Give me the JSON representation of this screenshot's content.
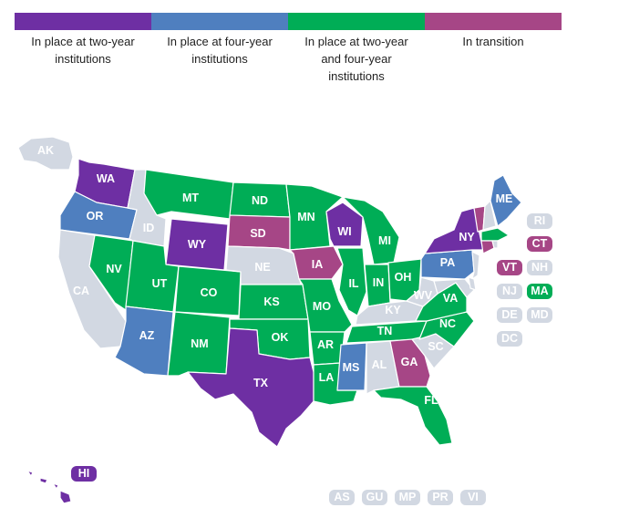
{
  "colors": {
    "two_year": "#6e2fa3",
    "four_year": "#4f7fbf",
    "both": "#00ad56",
    "transition": "#a64686",
    "none": "#d2d8e2"
  },
  "legend": [
    {
      "key": "two_year",
      "label": "In place at two-year institutions"
    },
    {
      "key": "four_year",
      "label": "In place at four-year institutions"
    },
    {
      "key": "both",
      "label": "In place at two-year and four-year institutions"
    },
    {
      "key": "transition",
      "label": "In transition"
    }
  ],
  "states": {
    "AK": {
      "label": "AK",
      "status": "none"
    },
    "WA": {
      "label": "WA",
      "status": "two_year"
    },
    "OR": {
      "label": "OR",
      "status": "four_year"
    },
    "CA": {
      "label": "CA",
      "status": "none"
    },
    "ID": {
      "label": "ID",
      "status": "none"
    },
    "NV": {
      "label": "NV",
      "status": "both"
    },
    "MT": {
      "label": "MT",
      "status": "both"
    },
    "WY": {
      "label": "WY",
      "status": "two_year"
    },
    "UT": {
      "label": "UT",
      "status": "both"
    },
    "AZ": {
      "label": "AZ",
      "status": "four_year"
    },
    "CO": {
      "label": "CO",
      "status": "both"
    },
    "NM": {
      "label": "NM",
      "status": "both"
    },
    "ND": {
      "label": "ND",
      "status": "both"
    },
    "SD": {
      "label": "SD",
      "status": "transition"
    },
    "NE": {
      "label": "NE",
      "status": "none"
    },
    "KS": {
      "label": "KS",
      "status": "both"
    },
    "OK": {
      "label": "OK",
      "status": "both"
    },
    "TX": {
      "label": "TX",
      "status": "two_year"
    },
    "MN": {
      "label": "MN",
      "status": "both"
    },
    "IA": {
      "label": "IA",
      "status": "transition"
    },
    "MO": {
      "label": "MO",
      "status": "both"
    },
    "AR": {
      "label": "AR",
      "status": "both"
    },
    "LA": {
      "label": "LA",
      "status": "both"
    },
    "WI": {
      "label": "WI",
      "status": "two_year"
    },
    "IL": {
      "label": "IL",
      "status": "both"
    },
    "MI": {
      "label": "MI",
      "status": "both"
    },
    "IN": {
      "label": "IN",
      "status": "both"
    },
    "OH": {
      "label": "OH",
      "status": "both"
    },
    "KY": {
      "label": "KY",
      "status": "none"
    },
    "TN": {
      "label": "TN",
      "status": "both"
    },
    "MS": {
      "label": "MS",
      "status": "four_year"
    },
    "AL": {
      "label": "AL",
      "status": "none"
    },
    "GA": {
      "label": "GA",
      "status": "transition"
    },
    "FL": {
      "label": "FL",
      "status": "both"
    },
    "SC": {
      "label": "SC",
      "status": "none"
    },
    "NC": {
      "label": "NC",
      "status": "both"
    },
    "VA": {
      "label": "VA",
      "status": "both"
    },
    "WV": {
      "label": "WV",
      "status": "none"
    },
    "PA": {
      "label": "PA",
      "status": "four_year"
    },
    "NY": {
      "label": "NY",
      "status": "two_year"
    },
    "ME": {
      "label": "ME",
      "status": "four_year"
    },
    "HI": {
      "label": "HI",
      "status": "two_year"
    },
    "RI": {
      "label": "RI",
      "status": "none"
    },
    "CT": {
      "label": "CT",
      "status": "transition"
    },
    "VT": {
      "label": "VT",
      "status": "transition"
    },
    "NH": {
      "label": "NH",
      "status": "none"
    },
    "NJ": {
      "label": "NJ",
      "status": "none"
    },
    "MA": {
      "label": "MA",
      "status": "both"
    },
    "DE": {
      "label": "DE",
      "status": "none"
    },
    "MD": {
      "label": "MD",
      "status": "none"
    },
    "DC": {
      "label": "DC",
      "status": "none"
    },
    "AS": {
      "label": "AS",
      "status": "none"
    },
    "GU": {
      "label": "GU",
      "status": "none"
    },
    "MP": {
      "label": "MP",
      "status": "none"
    },
    "PR": {
      "label": "PR",
      "status": "none"
    },
    "VI": {
      "label": "VI",
      "status": "none"
    }
  }
}
